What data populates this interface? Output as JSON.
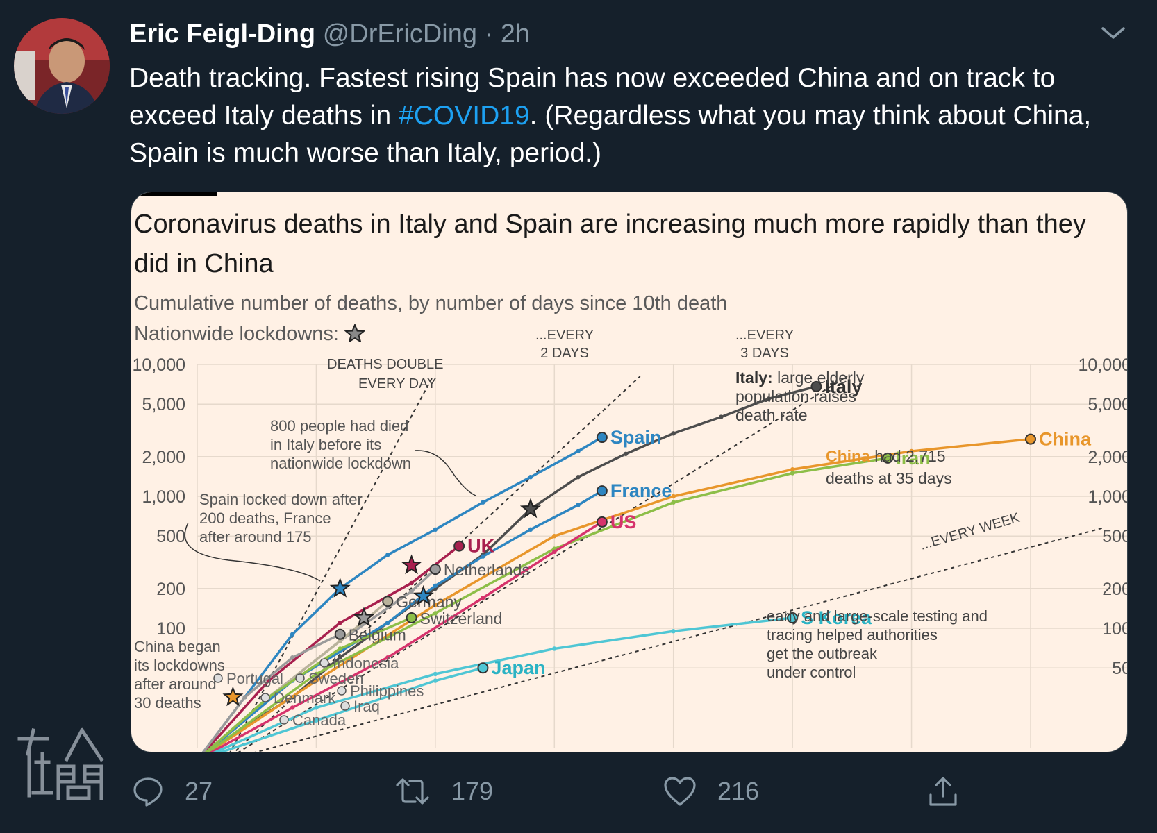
{
  "tweet": {
    "author_name": "Eric Feigl-Ding",
    "handle": "@DrEricDing",
    "separator": "·",
    "time": "2h",
    "text_before_hashtag": "Death tracking. Fastest rising Spain has now exceeded China and on track to exceed Italy deaths in ",
    "hashtag": "#COVID19",
    "text_after_hashtag": ". (Regardless what you may think about China, Spain is much worse than Italy, period.)"
  },
  "actions": {
    "replies": "27",
    "retweets": "179",
    "likes": "216"
  },
  "icons": {
    "caret": "chevron-down-icon",
    "reply": "reply-icon",
    "retweet": "retweet-icon",
    "like": "heart-icon",
    "share": "share-icon"
  },
  "watermark_text": "在人間",
  "colors": {
    "background": "#15202b",
    "card_background": "#fff1e5",
    "hashtag": "#1da1f2",
    "muted": "#8899a6",
    "italy": "#4d4d4d",
    "spain": "#2e86c1",
    "france": "#2e86c1",
    "china": "#e8962b",
    "iran": "#8dbe48",
    "us": "#d6336c",
    "uk": "#a8204e",
    "s_korea": "#4fc6d4",
    "japan": "#4fc6d4"
  },
  "chart_data": {
    "type": "line",
    "title": "Coronavirus deaths in Italy and Spain are increasing much more rapidly than they did in China",
    "subtitle": "Cumulative number of deaths, by number of days since 10th death",
    "lockdown_legend": "Nationwide lockdowns:",
    "y_scale": "log",
    "y_ticks_left": [
      "10,000",
      "5,000",
      "2,000",
      "1,000",
      "500",
      "200",
      "100"
    ],
    "y_ticks_right": [
      "10,000",
      "5,000",
      "2,000",
      "1,000",
      "500",
      "200",
      "100",
      "50"
    ],
    "y_tick_values": [
      10000,
      5000,
      2000,
      1000,
      500,
      200,
      100,
      50
    ],
    "x_range": [
      0,
      35
    ],
    "ylim": [
      10,
      10000
    ],
    "grid": true,
    "reference_lines": [
      {
        "label_line1": "DEATHS DOUBLE",
        "label_line2": "EVERY DAY",
        "doubling_days": 1
      },
      {
        "label_line1": "...EVERY",
        "label_line2": "2 DAYS",
        "doubling_days": 2
      },
      {
        "label_line1": "...EVERY",
        "label_line2": "3 DAYS",
        "doubling_days": 3
      },
      {
        "label_line1": "...EVERY WEEK",
        "label_line2": "",
        "doubling_days": 7
      }
    ],
    "series": [
      {
        "name": "Italy",
        "color": "#4d4d4d",
        "x": [
          0,
          2,
          4,
          6,
          8,
          10,
          12,
          14,
          16,
          18,
          20,
          22,
          24,
          26
        ],
        "y": [
          10,
          18,
          30,
          60,
          110,
          200,
          360,
          800,
          1400,
          2100,
          3000,
          4000,
          5500,
          6800
        ]
      },
      {
        "name": "Spain",
        "color": "#2e86c1",
        "x": [
          0,
          2,
          4,
          6,
          8,
          10,
          12,
          14,
          16,
          17
        ],
        "y": [
          10,
          30,
          90,
          200,
          360,
          560,
          900,
          1400,
          2200,
          2800
        ]
      },
      {
        "name": "France",
        "color": "#2e86c1",
        "x": [
          0,
          4,
          8,
          10,
          12,
          14,
          16,
          17
        ],
        "y": [
          10,
          40,
          110,
          210,
          350,
          560,
          860,
          1100
        ]
      },
      {
        "name": "China",
        "color": "#e8962b",
        "x": [
          0,
          5,
          10,
          15,
          20,
          25,
          30,
          35
        ],
        "y": [
          10,
          40,
          150,
          500,
          1000,
          1600,
          2200,
          2715
        ]
      },
      {
        "name": "Iran",
        "color": "#8dbe48",
        "x": [
          0,
          5,
          10,
          15,
          20,
          25,
          29
        ],
        "y": [
          10,
          45,
          130,
          400,
          900,
          1500,
          1950
        ]
      },
      {
        "name": "US",
        "color": "#d6336c",
        "x": [
          0,
          4,
          8,
          12,
          15,
          17
        ],
        "y": [
          10,
          25,
          60,
          170,
          380,
          640
        ]
      },
      {
        "name": "UK",
        "color": "#a8204e",
        "x": [
          0,
          3,
          6,
          9,
          11
        ],
        "y": [
          10,
          40,
          110,
          220,
          420
        ]
      },
      {
        "name": "Netherlands",
        "color": "#9a9a9a",
        "x": [
          0,
          3,
          6,
          9,
          10
        ],
        "y": [
          10,
          30,
          80,
          190,
          280
        ]
      },
      {
        "name": "Germany",
        "color": "#b9b29b",
        "x": [
          0,
          3,
          6,
          8
        ],
        "y": [
          10,
          30,
          80,
          160
        ]
      },
      {
        "name": "Switzerland",
        "color": "#8dbe48",
        "x": [
          0,
          3,
          6,
          9
        ],
        "y": [
          10,
          30,
          70,
          120
        ]
      },
      {
        "name": "Belgium",
        "color": "#9a9a9a",
        "x": [
          0,
          2,
          4,
          6
        ],
        "y": [
          10,
          30,
          60,
          90
        ]
      },
      {
        "name": "S Korea",
        "color": "#4fc6d4",
        "x": [
          0,
          5,
          10,
          15,
          20,
          25
        ],
        "y": [
          10,
          25,
          45,
          70,
          95,
          120
        ]
      },
      {
        "name": "Japan",
        "color": "#4fc6d4",
        "x": [
          0,
          5,
          10,
          12
        ],
        "y": [
          10,
          20,
          40,
          50
        ]
      }
    ],
    "annotations": [
      {
        "bold": "Italy:",
        "text": "large elderly population raises death rate"
      },
      {
        "bold": "China",
        "text": "had 2,715 deaths at 35 days"
      },
      {
        "bold": "S Korea",
        "text": ": early and large-scale testing and tracing helped authorities get the outbreak under control"
      },
      {
        "bold": "",
        "text": "800 people had died in Italy before its nationwide lockdown"
      },
      {
        "bold": "",
        "text": "Spain locked down after 200 deaths, France after around 175"
      },
      {
        "bold": "",
        "text": "China began its lockdowns after around 30 deaths"
      }
    ],
    "minor_labels": [
      "Indonesia",
      "Portugal",
      "Sweden",
      "Denmark",
      "Philippines",
      "Iraq",
      "Canada"
    ]
  }
}
